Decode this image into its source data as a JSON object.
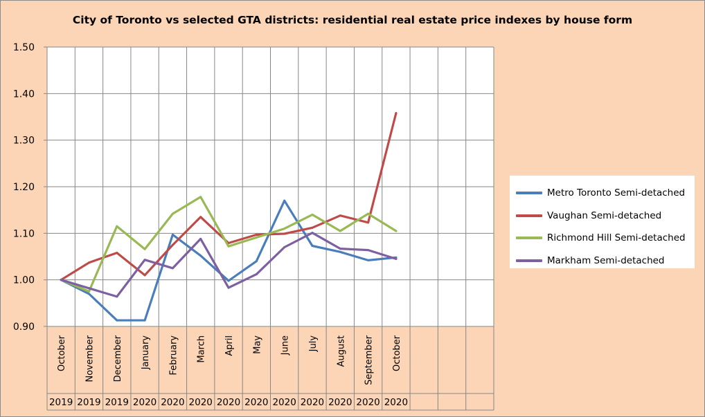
{
  "chart_data": {
    "type": "line",
    "title": "City of Toronto vs selected GTA districts: residential real estate price indexes by house form",
    "xlabel": "",
    "ylabel": "",
    "ylim": [
      0.9,
      1.5
    ],
    "y_ticks": [
      "0.90",
      "1.00",
      "1.10",
      "1.20",
      "1.30",
      "1.40",
      "1.50"
    ],
    "grid": true,
    "legend_position": "right",
    "category_slots": 16,
    "categories": [
      "October",
      "November",
      "December",
      "January",
      "February",
      "March",
      "April",
      "May",
      "June",
      "July",
      "August",
      "September",
      "October"
    ],
    "years": [
      "2019",
      "2019",
      "2019",
      "2020",
      "2020",
      "2020",
      "2020",
      "2020",
      "2020",
      "2020",
      "2020",
      "2020",
      "2020"
    ],
    "series": [
      {
        "name": "Metro Toronto Semi-detached",
        "color": "#4a7ebb",
        "values": [
          1.0,
          0.97,
          0.913,
          0.913,
          1.097,
          1.052,
          0.998,
          1.04,
          1.17,
          1.073,
          1.06,
          1.042,
          1.048
        ]
      },
      {
        "name": "Vaughan Semi-detached",
        "color": "#be4b48",
        "values": [
          1.0,
          1.037,
          1.058,
          1.01,
          1.075,
          1.135,
          1.079,
          1.097,
          1.099,
          1.112,
          1.138,
          1.123,
          1.358
        ]
      },
      {
        "name": "Richmond Hill Semi-detached",
        "color": "#98b954",
        "values": [
          1.0,
          0.975,
          1.115,
          1.066,
          1.142,
          1.178,
          1.072,
          1.091,
          1.11,
          1.14,
          1.105,
          1.142,
          1.105
        ]
      },
      {
        "name": "Markham Semi-detached",
        "color": "#7d60a0",
        "values": [
          1.0,
          0.982,
          0.964,
          1.043,
          1.025,
          1.088,
          0.983,
          1.012,
          1.07,
          1.101,
          1.067,
          1.064,
          1.045
        ]
      }
    ]
  }
}
